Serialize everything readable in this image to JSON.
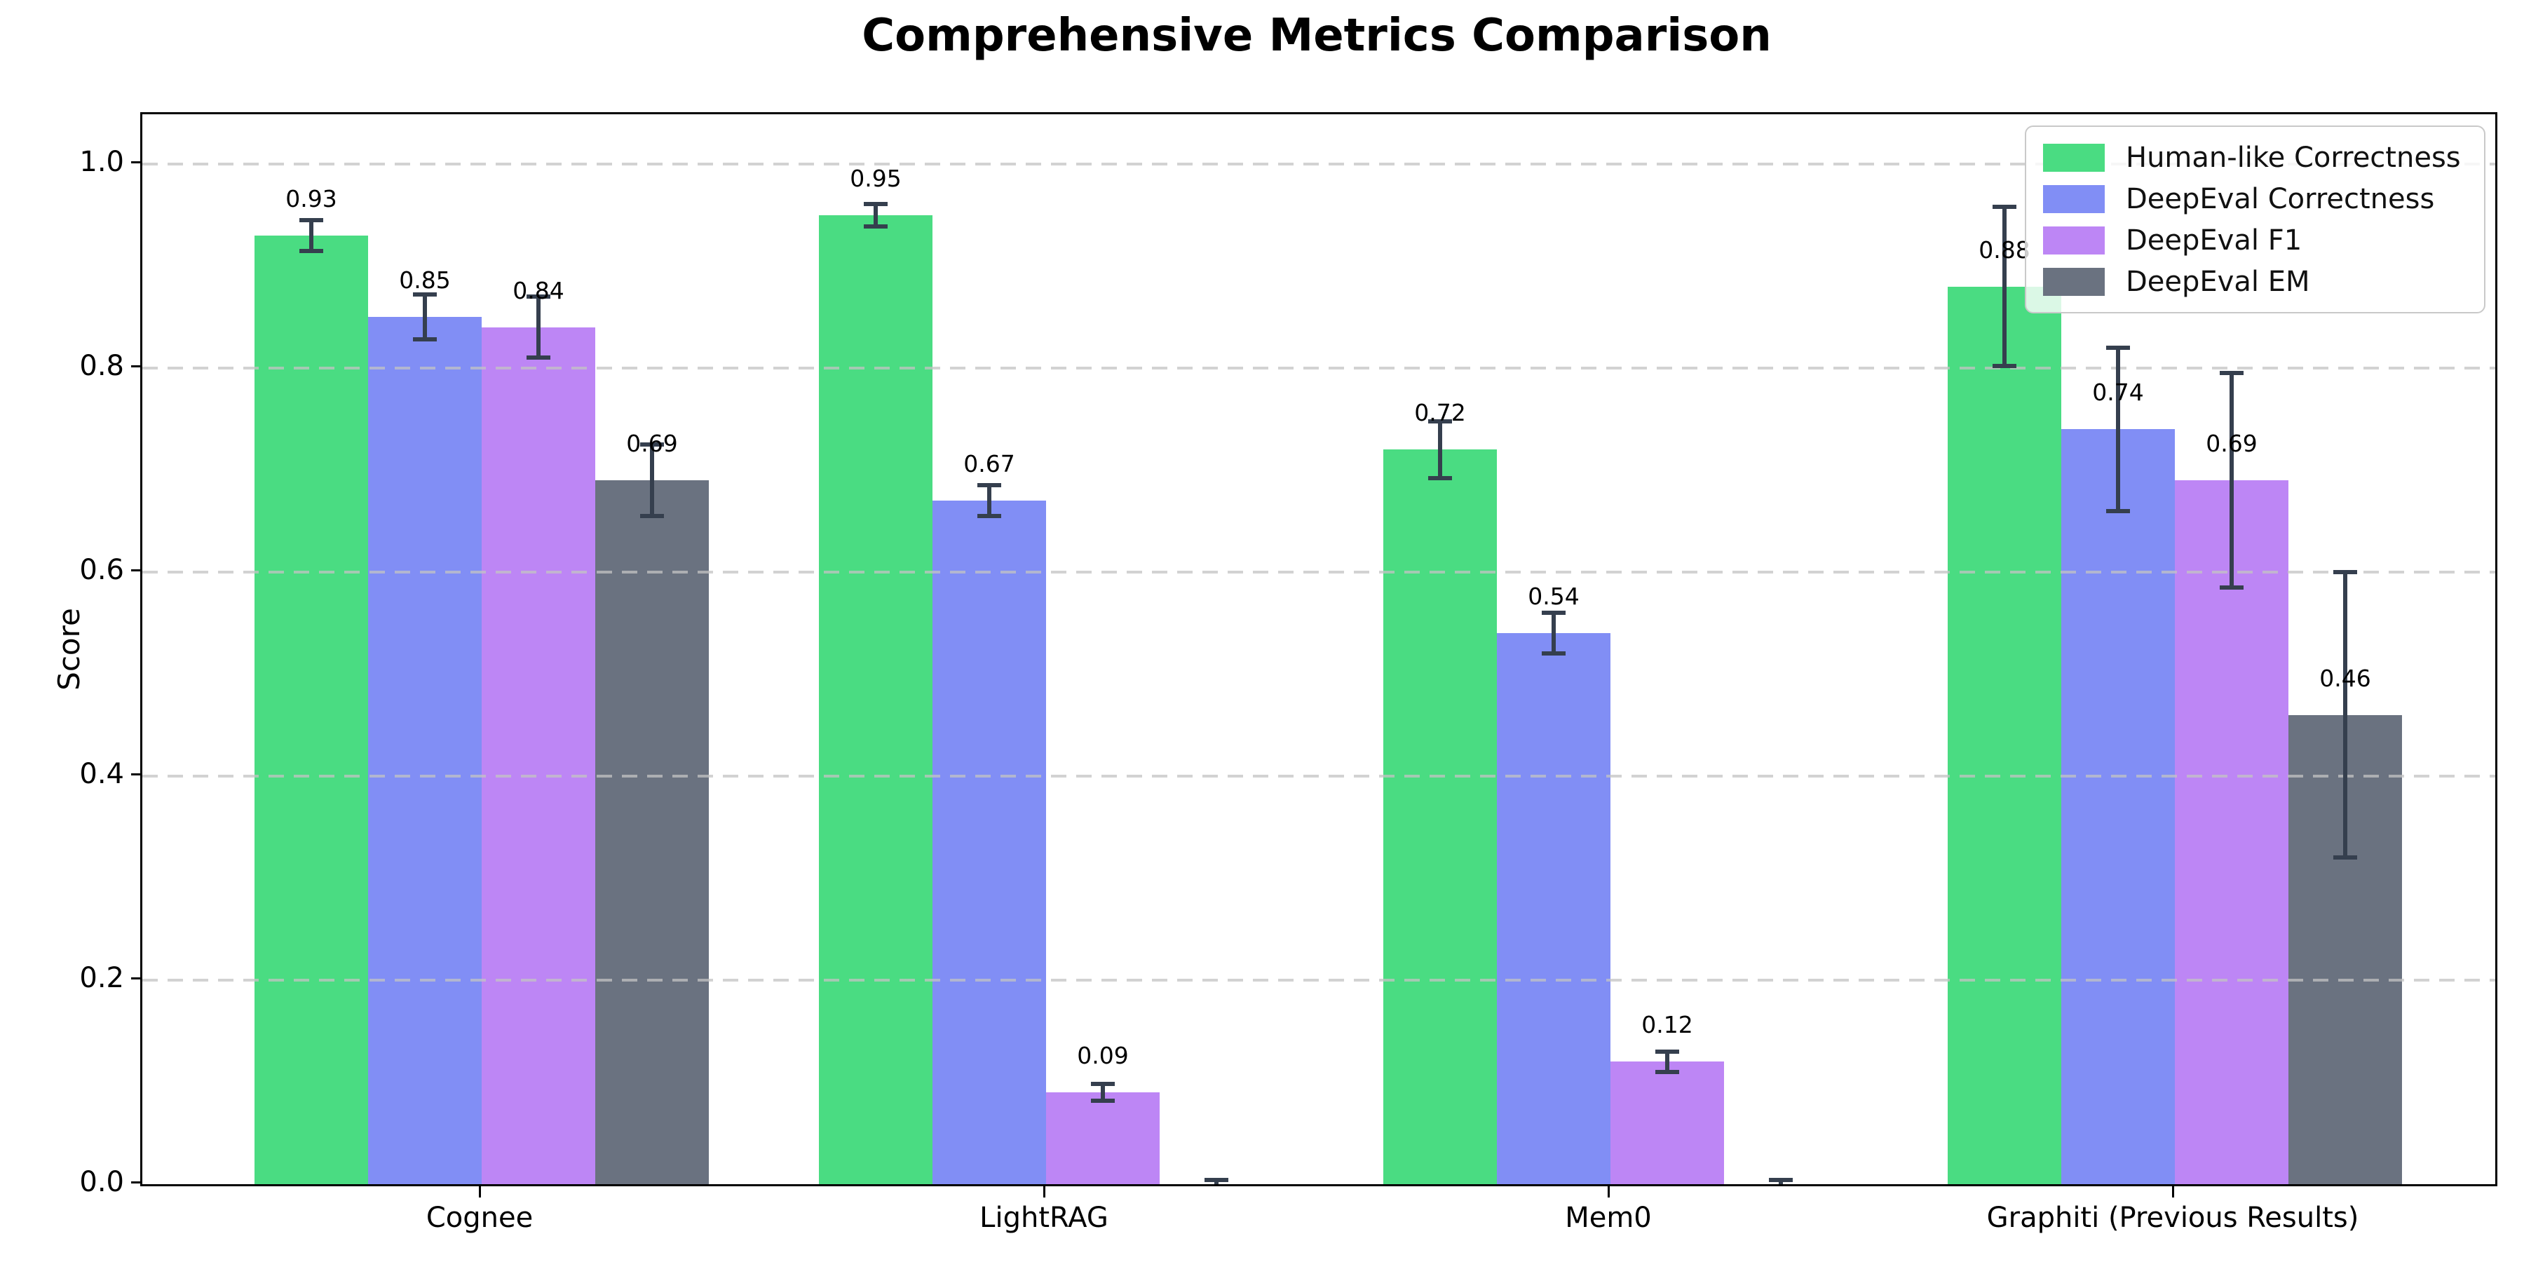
{
  "chart_data": {
    "type": "bar",
    "title": "Comprehensive Metrics Comparison",
    "ylabel": "Score",
    "xlabel": "",
    "ylim": [
      0,
      1.05
    ],
    "grid": "horizontal-dashed",
    "legend_position": "upper right",
    "categories": [
      "Cognee",
      "LightRAG",
      "Mem0",
      "Graphiti (Previous Results)"
    ],
    "y_ticks": [
      "0.0",
      "0.2",
      "0.4",
      "0.6",
      "0.8",
      "1.0"
    ],
    "series": [
      {
        "name": "Human-like Correctness",
        "color": "#4adc82",
        "values": [
          0.93,
          0.95,
          0.72,
          0.88
        ],
        "errors": [
          0.015,
          0.011,
          0.028,
          0.078
        ],
        "labels": [
          "0.93",
          "0.95",
          "0.72",
          "0.88"
        ]
      },
      {
        "name": "DeepEval Correctness",
        "color": "#818ef5",
        "values": [
          0.85,
          0.67,
          0.54,
          0.74
        ],
        "errors": [
          0.022,
          0.015,
          0.02,
          0.08
        ],
        "labels": [
          "0.85",
          "0.67",
          "0.54",
          "0.74"
        ]
      },
      {
        "name": "DeepEval F1",
        "color": "#bd86f5",
        "values": [
          0.84,
          0.09,
          0.12,
          0.69
        ],
        "errors": [
          0.03,
          0.008,
          0.01,
          0.105
        ],
        "labels": [
          "0.84",
          "0.09",
          "0.12",
          "0.69"
        ]
      },
      {
        "name": "DeepEval EM",
        "color": "#6a7280",
        "values": [
          0.69,
          0.0,
          0.0,
          0.46
        ],
        "errors": [
          0.035,
          0.004,
          0.004,
          0.14
        ],
        "labels": [
          "0.69",
          "",
          "",
          "0.46"
        ]
      }
    ],
    "style": {
      "error_bar_color": "#353f4e",
      "grid_color": "#c3c3c3",
      "spine_color": "#000000",
      "legend_border_color": "#c9c9c9"
    }
  }
}
